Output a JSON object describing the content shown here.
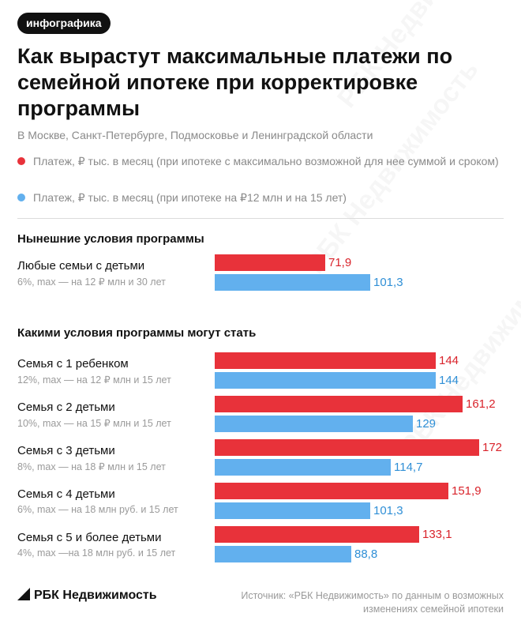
{
  "tag": "инфографика",
  "title": "Как вырастут максимальные платежи по семейной ипотеке при корректировке программы",
  "subtitle": "В Москве, Санкт-Петербурге, Подмосковье и Ленинградской области",
  "colors": {
    "red": "#e8323a",
    "blue": "#62b0ee"
  },
  "legend": {
    "red": "Платеж, ₽ тыс. в месяц (при ипотеке с максимально возможной для нее суммой и сроком)",
    "blue": "Платеж, ₽ тыс. в месяц (при ипотеке на ₽12 млн и на 15 лет)"
  },
  "sections": {
    "current": "Нынешние условия программы",
    "future": "Какими условия программы могут стать"
  },
  "groups": [
    {
      "name": "Любые семьи с детьми",
      "desc": "6%, max — на 12 ₽ млн и 30 лет",
      "red_label": "71,9",
      "blue_label": "101,3"
    },
    {
      "name": "Семья с 1 ребенком",
      "desc": "12%, max — на 12 ₽ млн и 15 лет",
      "red_label": "144",
      "blue_label": "144"
    },
    {
      "name": "Семья с 2 детьми",
      "desc": "10%, max — на 15 ₽ млн и 15 лет",
      "red_label": "161,2",
      "blue_label": "129"
    },
    {
      "name": "Семья с 3 детьми",
      "desc": "8%, max — на 18 ₽ млн и 15 лет",
      "red_label": "172",
      "blue_label": "114,7"
    },
    {
      "name": "Семья с 4 детьми",
      "desc": "6%,  max — на 18 млн руб. и 15 лет",
      "red_label": "151,9",
      "blue_label": "101,3"
    },
    {
      "name": "Семья с 5 и более детьми",
      "desc": "4%,  max —на 18 млн руб. и 15 лет",
      "red_label": "133,1",
      "blue_label": "88,8"
    }
  ],
  "chart_data": {
    "type": "bar",
    "orientation": "horizontal",
    "categories": [
      "Любые семьи с детьми",
      "Семья с 1 ребенком",
      "Семья с 2 детьми",
      "Семья с 3 детьми",
      "Семья с 4 детьми",
      "Семья с 5 и более детьми"
    ],
    "series": [
      {
        "values": [
          71.9,
          144,
          161.2,
          172,
          151.9,
          133.1
        ],
        "color": "#e8323a"
      },
      {
        "values": [
          101.3,
          144,
          129,
          114.7,
          101.3,
          88.8
        ],
        "color": "#62b0ee"
      }
    ],
    "xlim": [
      0,
      172
    ],
    "grid": false,
    "legend": "top"
  },
  "footer": {
    "brand": "РБК Недвижимость",
    "source": "Источник: «РБК Недвижимость» по данным о возможных изменениях семейной ипотеки"
  },
  "watermark": "РБК Недвижимость"
}
